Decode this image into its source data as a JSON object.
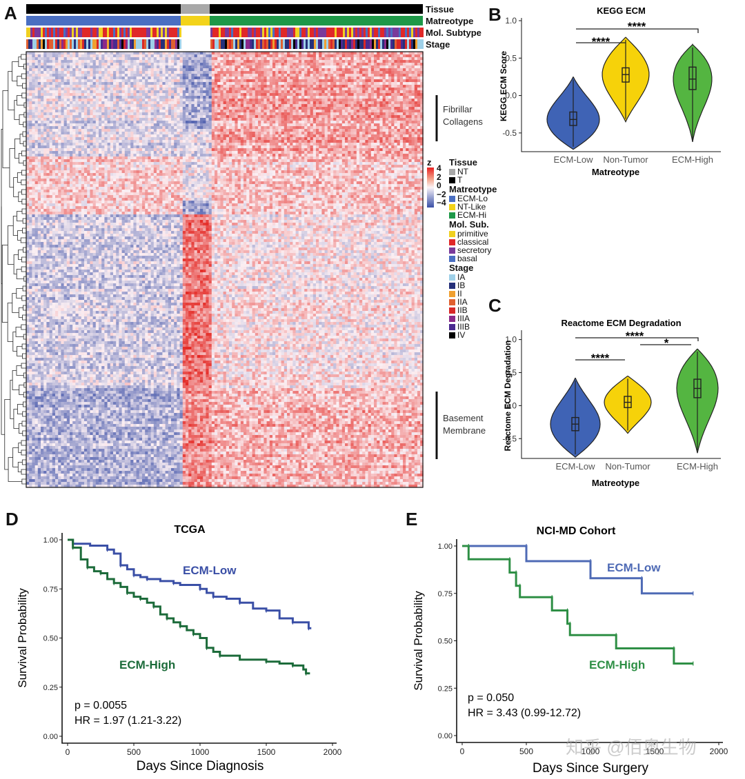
{
  "panel_labels": {
    "a": "A",
    "b": "B",
    "c": "C",
    "d": "D",
    "e": "E"
  },
  "heatmap": {
    "tracks": [
      "Tissue",
      "Matreotype",
      "Mol. Subtype",
      "Stage"
    ],
    "side_labels": {
      "fibrillar": [
        "Fibrillar",
        "Collagens"
      ],
      "basement": [
        "Basement",
        "Membrane"
      ]
    },
    "colorbar": {
      "title": "z",
      "ticks": [
        "4",
        "2",
        "0",
        "−2",
        "−4"
      ]
    },
    "legend": [
      {
        "title": "Tissue",
        "items": [
          {
            "label": "NT",
            "color": "#a8a8a8"
          },
          {
            "label": "T",
            "color": "#000000"
          }
        ]
      },
      {
        "title": "Matreotype",
        "items": [
          {
            "label": "ECM-Lo",
            "color": "#4a6fc2"
          },
          {
            "label": "NT-Like",
            "color": "#f3d31a"
          },
          {
            "label": "ECM-Hi",
            "color": "#1e9848"
          }
        ]
      },
      {
        "title": "Mol. Sub.",
        "items": [
          {
            "label": "primitive",
            "color": "#f0d020"
          },
          {
            "label": "classical",
            "color": "#e02828"
          },
          {
            "label": "secretory",
            "color": "#7a3a9a"
          },
          {
            "label": "basal",
            "color": "#4a6fc2"
          }
        ]
      },
      {
        "title": "Stage",
        "items": [
          {
            "label": "IA",
            "color": "#9ed0e8"
          },
          {
            "label": "IB",
            "color": "#25307a"
          },
          {
            "label": "II",
            "color": "#f0a030"
          },
          {
            "label": "IIA",
            "color": "#e06030"
          },
          {
            "label": "IIB",
            "color": "#d82828"
          },
          {
            "label": "IIIA",
            "color": "#8a2a8a"
          },
          {
            "label": "IIIB",
            "color": "#4a2a90"
          },
          {
            "label": "IV",
            "color": "#000000"
          }
        ]
      }
    ]
  },
  "chart_data": [
    {
      "type": "violin",
      "panel": "B",
      "title": "KEGG ECM",
      "xlabel": "Matreotype",
      "ylabel": "KEGG ECM Score",
      "ylim": [
        -0.75,
        1.0
      ],
      "yticks": [
        "1.0",
        "0.5",
        "0.0",
        "-0.5"
      ],
      "categories": [
        "ECM-Low",
        "Non-Tumor",
        "ECM-High"
      ],
      "colors": [
        "#3f63b5",
        "#f6d20a",
        "#54b541"
      ],
      "groups": [
        {
          "name": "ECM-Low",
          "median": -0.32,
          "q1": -0.4,
          "q3": -0.22,
          "min": -0.72,
          "max": 0.25
        },
        {
          "name": "Non-Tumor",
          "median": 0.28,
          "q1": 0.18,
          "q3": 0.37,
          "min": -0.35,
          "max": 0.78
        },
        {
          "name": "ECM-High",
          "median": 0.22,
          "q1": 0.08,
          "q3": 0.38,
          "min": -0.62,
          "max": 0.68
        }
      ],
      "significance": [
        {
          "label": "****",
          "from": "ECM-Low",
          "to": "Non-Tumor"
        },
        {
          "label": "****",
          "from": "ECM-Low",
          "to": "ECM-High"
        }
      ]
    },
    {
      "type": "violin",
      "panel": "C",
      "title": "Reactome ECM Degradation",
      "xlabel": "Matreotype",
      "ylabel": "Reactome ECM Degradation",
      "ylim": [
        -0.8,
        1.1
      ],
      "yticks": [
        "1.0",
        "0.5",
        "0.0",
        "-0.5"
      ],
      "categories": [
        "ECM-Low",
        "Non-Tumor",
        "ECM-High"
      ],
      "colors": [
        "#3f63b5",
        "#f6d20a",
        "#54b541"
      ],
      "groups": [
        {
          "name": "ECM-Low",
          "median": -0.28,
          "q1": -0.38,
          "q3": -0.18,
          "min": -0.78,
          "max": 0.42
        },
        {
          "name": "Non-Tumor",
          "median": 0.05,
          "q1": -0.03,
          "q3": 0.14,
          "min": -0.42,
          "max": 0.45
        },
        {
          "name": "ECM-High",
          "median": 0.26,
          "q1": 0.12,
          "q3": 0.4,
          "min": -0.72,
          "max": 0.86
        }
      ],
      "significance": [
        {
          "label": "****",
          "from": "ECM-Low",
          "to": "Non-Tumor"
        },
        {
          "label": "****",
          "from": "ECM-Low",
          "to": "ECM-High"
        },
        {
          "label": "*",
          "from": "Non-Tumor",
          "to": "ECM-High"
        }
      ]
    },
    {
      "type": "line",
      "panel": "D",
      "title": "TCGA",
      "xlabel": "Days Since Diagnosis",
      "ylabel": "Survival Probability",
      "xlim": [
        0,
        2000
      ],
      "ylim": [
        0,
        1
      ],
      "xticks": [
        "0",
        "500",
        "1000",
        "1500",
        "2000"
      ],
      "yticks": [
        "0.00",
        "0.25",
        "0.50",
        "0.75",
        "1.00"
      ],
      "series": [
        {
          "name": "ECM-Low",
          "color": "#3a4fa6",
          "points": [
            [
              0,
              1.0
            ],
            [
              40,
              0.98
            ],
            [
              170,
              0.97
            ],
            [
              300,
              0.95
            ],
            [
              350,
              0.93
            ],
            [
              400,
              0.87
            ],
            [
              450,
              0.85
            ],
            [
              500,
              0.82
            ],
            [
              550,
              0.81
            ],
            [
              600,
              0.8
            ],
            [
              700,
              0.79
            ],
            [
              800,
              0.78
            ],
            [
              850,
              0.77
            ],
            [
              1000,
              0.75
            ],
            [
              1050,
              0.73
            ],
            [
              1100,
              0.71
            ],
            [
              1200,
              0.7
            ],
            [
              1300,
              0.68
            ],
            [
              1400,
              0.65
            ],
            [
              1500,
              0.64
            ],
            [
              1600,
              0.6
            ],
            [
              1700,
              0.58
            ],
            [
              1800,
              0.58
            ],
            [
              1820,
              0.55
            ],
            [
              1840,
              0.55
            ]
          ]
        },
        {
          "name": "ECM-High",
          "color": "#1c6b3a",
          "points": [
            [
              0,
              1.0
            ],
            [
              40,
              0.96
            ],
            [
              100,
              0.9
            ],
            [
              150,
              0.86
            ],
            [
              200,
              0.84
            ],
            [
              250,
              0.83
            ],
            [
              300,
              0.8
            ],
            [
              350,
              0.78
            ],
            [
              400,
              0.76
            ],
            [
              450,
              0.73
            ],
            [
              500,
              0.71
            ],
            [
              550,
              0.7
            ],
            [
              600,
              0.68
            ],
            [
              650,
              0.66
            ],
            [
              700,
              0.62
            ],
            [
              750,
              0.6
            ],
            [
              800,
              0.58
            ],
            [
              850,
              0.56
            ],
            [
              900,
              0.54
            ],
            [
              950,
              0.52
            ],
            [
              1000,
              0.5
            ],
            [
              1050,
              0.45
            ],
            [
              1100,
              0.43
            ],
            [
              1150,
              0.41
            ],
            [
              1300,
              0.39
            ],
            [
              1500,
              0.38
            ],
            [
              1600,
              0.37
            ],
            [
              1700,
              0.36
            ],
            [
              1780,
              0.34
            ],
            [
              1800,
              0.32
            ],
            [
              1830,
              0.32
            ]
          ]
        }
      ],
      "annotations": {
        "p": "p = 0.0055",
        "hr": "HR = 1.97 (1.21-3.22)",
        "low_label": "ECM-Low",
        "high_label": "ECM-High"
      }
    },
    {
      "type": "line",
      "panel": "E",
      "title": "NCI-MD Cohort",
      "xlabel": "Days Since Surgery",
      "ylabel": "Survival Probability",
      "xlim": [
        0,
        2000
      ],
      "ylim": [
        0,
        1
      ],
      "xticks": [
        "0",
        "500",
        "1000",
        "1500",
        "2000"
      ],
      "yticks": [
        "0.00",
        "0.25",
        "0.50",
        "0.75",
        "1.00"
      ],
      "series": [
        {
          "name": "ECM-Low",
          "color": "#4e6ab5",
          "points": [
            [
              0,
              1.0
            ],
            [
              500,
              1.0
            ],
            [
              500,
              0.92
            ],
            [
              1000,
              0.92
            ],
            [
              1000,
              0.83
            ],
            [
              1400,
              0.83
            ],
            [
              1400,
              0.75
            ],
            [
              1800,
              0.75
            ]
          ]
        },
        {
          "name": "ECM-High",
          "color": "#2e8f45",
          "points": [
            [
              0,
              1.0
            ],
            [
              50,
              1.0
            ],
            [
              50,
              0.93
            ],
            [
              370,
              0.93
            ],
            [
              370,
              0.86
            ],
            [
              420,
              0.86
            ],
            [
              420,
              0.79
            ],
            [
              450,
              0.79
            ],
            [
              450,
              0.73
            ],
            [
              700,
              0.73
            ],
            [
              700,
              0.66
            ],
            [
              820,
              0.66
            ],
            [
              820,
              0.59
            ],
            [
              840,
              0.59
            ],
            [
              840,
              0.53
            ],
            [
              1200,
              0.53
            ],
            [
              1200,
              0.46
            ],
            [
              1650,
              0.46
            ],
            [
              1650,
              0.38
            ],
            [
              1800,
              0.38
            ]
          ]
        }
      ],
      "annotations": {
        "p": "p = 0.050",
        "hr": "HR = 3.43 (0.99-12.72)",
        "low_label": "ECM-Low",
        "high_label": "ECM-High"
      }
    }
  ],
  "watermark": "知乎 @佰奥生物"
}
